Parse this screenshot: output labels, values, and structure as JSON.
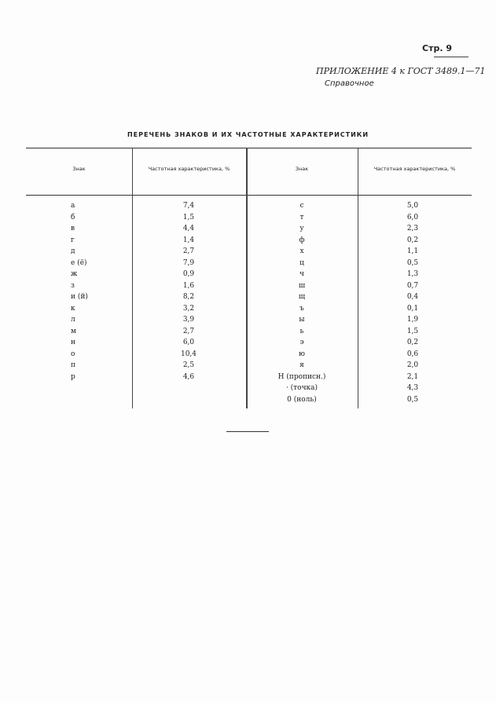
{
  "header": {
    "page_number": "Стр. 9",
    "appendix": "ПРИЛОЖЕНИЕ 4 к ГОСТ 3489.1—71",
    "reference_type": "Справочное"
  },
  "title": "ПЕРЕЧЕНЬ ЗНАКОВ И ИХ ЧАСТОТНЫЕ ХАРАКТЕРИСТИКИ",
  "table": {
    "columns": [
      "Знак",
      "Частотная характеристика, %",
      "Знак",
      "Частотная характеристика, %"
    ],
    "left": [
      {
        "sign": "а",
        "freq": "7,4"
      },
      {
        "sign": "б",
        "freq": "1,5"
      },
      {
        "sign": "в",
        "freq": "4,4"
      },
      {
        "sign": "г",
        "freq": "1,4"
      },
      {
        "sign": "д",
        "freq": "2,7"
      },
      {
        "sign": "е (ё)",
        "freq": "7,9"
      },
      {
        "sign": "ж",
        "freq": "0,9"
      },
      {
        "sign": "з",
        "freq": "1,6"
      },
      {
        "sign": "и (й)",
        "freq": "8,2"
      },
      {
        "sign": "к",
        "freq": "3,2"
      },
      {
        "sign": "л",
        "freq": "3,9"
      },
      {
        "sign": "м",
        "freq": "2,7"
      },
      {
        "sign": "н",
        "freq": "6,0"
      },
      {
        "sign": "о",
        "freq": "10,4"
      },
      {
        "sign": "п",
        "freq": "2,5"
      },
      {
        "sign": "р",
        "freq": "4,6"
      }
    ],
    "right": [
      {
        "sign": "с",
        "freq": "5,0"
      },
      {
        "sign": "т",
        "freq": "6,0"
      },
      {
        "sign": "у",
        "freq": "2,3"
      },
      {
        "sign": "ф",
        "freq": "0,2"
      },
      {
        "sign": "х",
        "freq": "1,1"
      },
      {
        "sign": "ц",
        "freq": "0,5"
      },
      {
        "sign": "ч",
        "freq": "1,3"
      },
      {
        "sign": "ш",
        "freq": "0,7"
      },
      {
        "sign": "щ",
        "freq": "0,4"
      },
      {
        "sign": "ъ",
        "freq": "0,1"
      },
      {
        "sign": "ы",
        "freq": "1,9"
      },
      {
        "sign": "ь",
        "freq": "1,5"
      },
      {
        "sign": "э",
        "freq": "0,2"
      },
      {
        "sign": "ю",
        "freq": "0,6"
      },
      {
        "sign": "я",
        "freq": "2,0"
      },
      {
        "sign": "Н (прописн.)",
        "freq": "2,1"
      },
      {
        "sign": "· (точка)",
        "freq": "4,3"
      },
      {
        "sign": "0 (ноль)",
        "freq": "0,5"
      }
    ]
  }
}
